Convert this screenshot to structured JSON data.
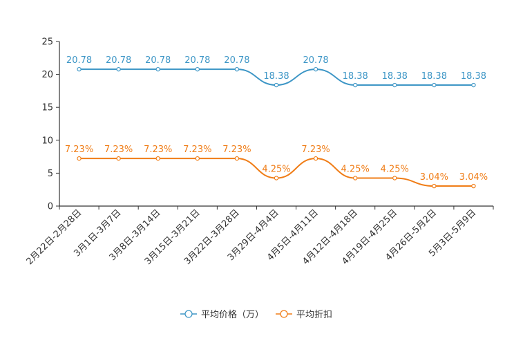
{
  "chart_data": {
    "type": "line",
    "title": "",
    "xlabel": "",
    "ylabel": "",
    "ylim": [
      0,
      25
    ],
    "yticks": [
      0,
      5,
      10,
      15,
      20,
      25
    ],
    "grid": false,
    "legend_position": "bottom-center",
    "categories": [
      "2月22日-2月28日",
      "3月1日-3月7日",
      "3月8日-3月14日",
      "3月15日-3月21日",
      "3月22日-3月28日",
      "3月29日-4月4日",
      "4月5日-4月11日",
      "4月12日-4月18日",
      "4月19日-4月25日",
      "4月26日-5月2日",
      "5月3日-5月9日"
    ],
    "series": [
      {
        "name": "平均价格（万）",
        "color": "#3d96c6",
        "values": [
          20.78,
          20.78,
          20.78,
          20.78,
          20.78,
          18.38,
          20.78,
          18.38,
          18.38,
          18.38,
          18.38
        ],
        "labels": [
          "20.78",
          "20.78",
          "20.78",
          "20.78",
          "20.78",
          "18.38",
          "20.78",
          "18.38",
          "18.38",
          "18.38",
          "18.38"
        ]
      },
      {
        "name": "平均折扣",
        "color": "#f07d17",
        "values": [
          7.23,
          7.23,
          7.23,
          7.23,
          7.23,
          4.25,
          7.23,
          4.25,
          4.25,
          3.04,
          3.04
        ],
        "labels": [
          "7.23%",
          "7.23%",
          "7.23%",
          "7.23%",
          "7.23%",
          "4.25%",
          "7.23%",
          "4.25%",
          "4.25%",
          "3.04%",
          "3.04%"
        ]
      }
    ]
  }
}
